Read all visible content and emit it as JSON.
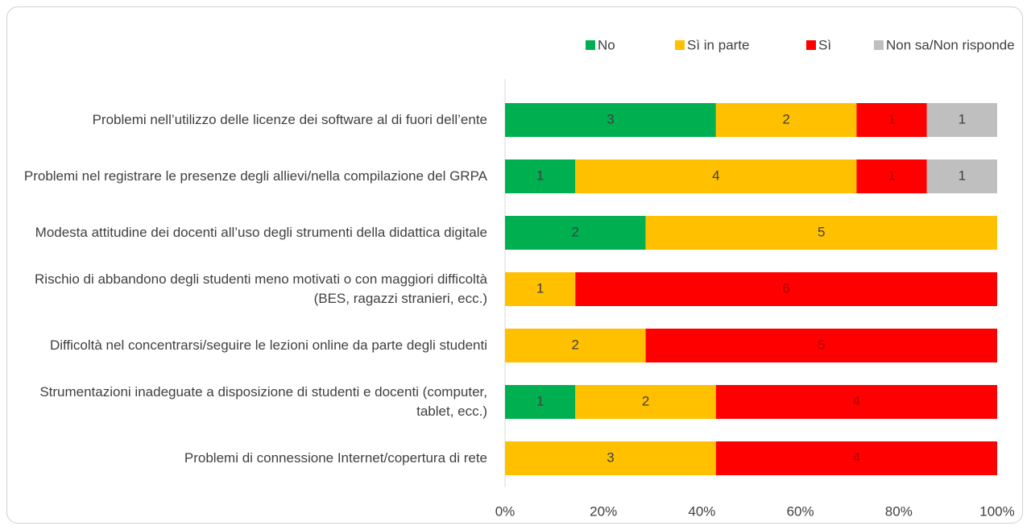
{
  "chart_data": {
    "type": "bar",
    "orientation": "horizontal",
    "stacked_percent": true,
    "categories": [
      "Problemi nell’utilizzo delle licenze dei software al di fuori dell’ente",
      "Problemi nel registrare le presenze degli allievi/nella compilazione del GRPA",
      "Modesta attitudine dei docenti all’uso degli strumenti della didattica digitale",
      "Rischio di abbandono degli studenti meno motivati o con maggiori difficoltà (BES, ragazzi stranieri, ecc.)",
      "Difficoltà nel concentrarsi/seguire le lezioni online da parte degli studenti",
      "Strumentazioni inadeguate a disposizione di studenti e docenti (computer, tablet, ecc.)",
      "Problemi di connessione Internet/copertura di rete"
    ],
    "series": [
      {
        "name": "No",
        "color": "#00b050",
        "values": [
          3,
          1,
          2,
          0,
          0,
          1,
          0
        ]
      },
      {
        "name": "Sì in parte",
        "color": "#ffc000",
        "values": [
          2,
          4,
          5,
          1,
          2,
          2,
          3
        ]
      },
      {
        "name": "Sì",
        "color": "#ff0000",
        "values": [
          1,
          1,
          0,
          6,
          5,
          4,
          4
        ]
      },
      {
        "name": "Non sa/Non risponde",
        "color": "#bfbfbf",
        "values": [
          1,
          1,
          0,
          0,
          0,
          0,
          0
        ]
      }
    ],
    "xlim": [
      0,
      100
    ],
    "xticks": [
      {
        "value": 0,
        "label": "0%"
      },
      {
        "value": 20,
        "label": "20%"
      },
      {
        "value": 40,
        "label": "40%"
      },
      {
        "value": 60,
        "label": "60%"
      },
      {
        "value": 80,
        "label": "80%"
      },
      {
        "value": 100,
        "label": "100%"
      }
    ],
    "legend": "top",
    "grid": false
  }
}
